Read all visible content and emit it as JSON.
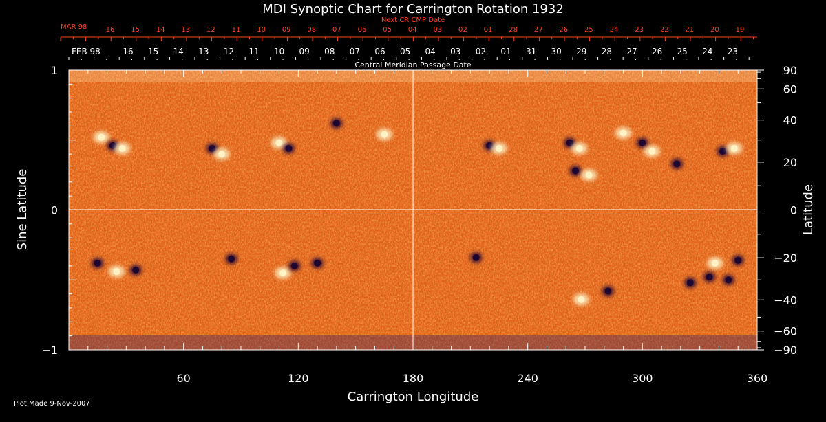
{
  "chart_data": {
    "type": "heatmap",
    "title": "MDI Synoptic Chart for Carrington Rotation 1932",
    "xlabel": "Carrington Longitude",
    "ylabel_left": "Sine Latitude",
    "ylabel_right": "Latitude",
    "xlim": [
      0,
      360
    ],
    "ylim_sine": [
      -1,
      1
    ],
    "x_ticks": [
      60,
      120,
      180,
      240,
      300,
      360
    ],
    "y_ticks_left": [
      {
        "label": "1",
        "value": 1
      },
      {
        "label": "0",
        "value": 0
      },
      {
        "label": "−1",
        "value": -1
      }
    ],
    "y_ticks_right_latitude": [
      90,
      60,
      40,
      20,
      0,
      -20,
      -40,
      -60,
      -90
    ],
    "y_tick_labels_right": [
      "90",
      "60",
      "40",
      "20",
      "0",
      "−20",
      "−40",
      "−60",
      "−90"
    ],
    "next_cr_label": "Next CR CMP Date",
    "next_cr_month": "MAR 98",
    "next_cr_dates": [
      "16",
      "15",
      "14",
      "13",
      "12",
      "11",
      "10",
      "09",
      "08",
      "07",
      "06",
      "05",
      "04",
      "03",
      "02",
      "01",
      "28",
      "27",
      "26",
      "25",
      "24",
      "23",
      "22",
      "21",
      "20",
      "19"
    ],
    "cmp_month": "FEB 98",
    "cmp_dates": [
      "16",
      "15",
      "14",
      "13",
      "12",
      "11",
      "10",
      "09",
      "08",
      "07",
      "06",
      "05",
      "04",
      "03",
      "02",
      "01",
      "31",
      "30",
      "29",
      "28",
      "27",
      "26",
      "25",
      "24",
      "23"
    ],
    "cmp_label": "Central Meridian Passage Date",
    "active_regions": [
      {
        "lon": 17,
        "sinlat": 0.52,
        "sign": "positive"
      },
      {
        "lon": 23,
        "sinlat": 0.46,
        "sign": "negative"
      },
      {
        "lon": 28,
        "sinlat": 0.44,
        "sign": "positive"
      },
      {
        "lon": 75,
        "sinlat": 0.44,
        "sign": "negative"
      },
      {
        "lon": 80,
        "sinlat": 0.4,
        "sign": "positive"
      },
      {
        "lon": 110,
        "sinlat": 0.48,
        "sign": "positive"
      },
      {
        "lon": 115,
        "sinlat": 0.44,
        "sign": "negative"
      },
      {
        "lon": 140,
        "sinlat": 0.62,
        "sign": "negative"
      },
      {
        "lon": 165,
        "sinlat": 0.54,
        "sign": "positive"
      },
      {
        "lon": 220,
        "sinlat": 0.46,
        "sign": "negative"
      },
      {
        "lon": 225,
        "sinlat": 0.44,
        "sign": "positive"
      },
      {
        "lon": 262,
        "sinlat": 0.48,
        "sign": "negative"
      },
      {
        "lon": 267,
        "sinlat": 0.44,
        "sign": "positive"
      },
      {
        "lon": 265,
        "sinlat": 0.28,
        "sign": "negative"
      },
      {
        "lon": 272,
        "sinlat": 0.25,
        "sign": "positive"
      },
      {
        "lon": 290,
        "sinlat": 0.55,
        "sign": "positive"
      },
      {
        "lon": 300,
        "sinlat": 0.48,
        "sign": "negative"
      },
      {
        "lon": 305,
        "sinlat": 0.42,
        "sign": "positive"
      },
      {
        "lon": 318,
        "sinlat": 0.33,
        "sign": "negative"
      },
      {
        "lon": 342,
        "sinlat": 0.42,
        "sign": "negative"
      },
      {
        "lon": 348,
        "sinlat": 0.44,
        "sign": "positive"
      },
      {
        "lon": 15,
        "sinlat": -0.38,
        "sign": "negative"
      },
      {
        "lon": 25,
        "sinlat": -0.44,
        "sign": "positive"
      },
      {
        "lon": 35,
        "sinlat": -0.43,
        "sign": "negative"
      },
      {
        "lon": 85,
        "sinlat": -0.35,
        "sign": "negative"
      },
      {
        "lon": 112,
        "sinlat": -0.45,
        "sign": "positive"
      },
      {
        "lon": 118,
        "sinlat": -0.4,
        "sign": "negative"
      },
      {
        "lon": 130,
        "sinlat": -0.38,
        "sign": "negative"
      },
      {
        "lon": 213,
        "sinlat": -0.34,
        "sign": "negative"
      },
      {
        "lon": 268,
        "sinlat": -0.64,
        "sign": "positive"
      },
      {
        "lon": 282,
        "sinlat": -0.58,
        "sign": "negative"
      },
      {
        "lon": 325,
        "sinlat": -0.52,
        "sign": "negative"
      },
      {
        "lon": 335,
        "sinlat": -0.48,
        "sign": "negative"
      },
      {
        "lon": 338,
        "sinlat": -0.38,
        "sign": "positive"
      },
      {
        "lon": 350,
        "sinlat": -0.36,
        "sign": "negative"
      },
      {
        "lon": 345,
        "sinlat": -0.5,
        "sign": "negative"
      }
    ],
    "colors": {
      "background": "#000000",
      "field_base": "#e0601a",
      "positive": "#fff4c8",
      "negative": "#1a0530",
      "grid": "#ffffff",
      "next_cr_text": "#ff4020",
      "axis_text": "#ffffff"
    },
    "footer": "Plot Made  9-Nov-2007"
  }
}
